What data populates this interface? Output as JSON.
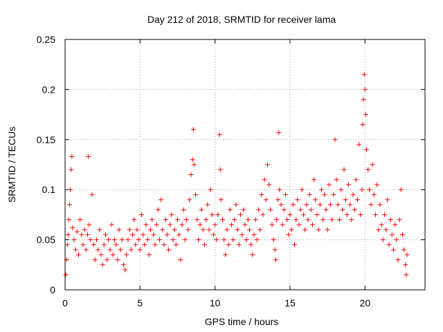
{
  "chart_data": {
    "type": "scatter",
    "title": "Day 212 of 2018, SRMTID for receiver lama",
    "xlabel": "GPS time / hours",
    "ylabel": "SRMTID / TECUs",
    "xlim": [
      0,
      24
    ],
    "ylim": [
      0,
      0.25
    ],
    "xticks": [
      0,
      5,
      10,
      15,
      20
    ],
    "xtick_labels": [
      "0",
      "5",
      "10",
      "15",
      "20"
    ],
    "yticks": [
      0,
      0.05,
      0.1,
      0.15,
      0.2,
      0.25
    ],
    "ytick_labels": [
      "0",
      "0.05",
      "0.1",
      "0.15",
      "0.2",
      "0.25"
    ],
    "grid": true,
    "marker": "+",
    "color": "#ff0000",
    "series": [
      {
        "name": "SRMTID",
        "points": [
          [
            0.05,
            0.015
          ],
          [
            0.1,
            0.03
          ],
          [
            0.15,
            0.045
          ],
          [
            0.2,
            0.055
          ],
          [
            0.25,
            0.07
          ],
          [
            0.3,
            0.085
          ],
          [
            0.35,
            0.1
          ],
          [
            0.4,
            0.12
          ],
          [
            0.45,
            0.133
          ],
          [
            0.5,
            0.062
          ],
          [
            0.6,
            0.05
          ],
          [
            0.7,
            0.04
          ],
          [
            0.8,
            0.058
          ],
          [
            0.9,
            0.035
          ],
          [
            1.0,
            0.07
          ],
          [
            1.1,
            0.055
          ],
          [
            1.2,
            0.045
          ],
          [
            1.3,
            0.06
          ],
          [
            1.4,
            0.04
          ],
          [
            1.5,
            0.055
          ],
          [
            1.55,
            0.133
          ],
          [
            1.6,
            0.065
          ],
          [
            1.7,
            0.05
          ],
          [
            1.8,
            0.095
          ],
          [
            1.9,
            0.045
          ],
          [
            2.0,
            0.03
          ],
          [
            2.1,
            0.05
          ],
          [
            2.2,
            0.04
          ],
          [
            2.3,
            0.06
          ],
          [
            2.4,
            0.035
          ],
          [
            2.5,
            0.025
          ],
          [
            2.6,
            0.045
          ],
          [
            2.7,
            0.055
          ],
          [
            2.8,
            0.03
          ],
          [
            2.9,
            0.05
          ],
          [
            3.0,
            0.04
          ],
          [
            3.1,
            0.065
          ],
          [
            3.2,
            0.035
          ],
          [
            3.3,
            0.05
          ],
          [
            3.4,
            0.045
          ],
          [
            3.5,
            0.03
          ],
          [
            3.6,
            0.06
          ],
          [
            3.7,
            0.04
          ],
          [
            3.8,
            0.05
          ],
          [
            3.9,
            0.025
          ],
          [
            4.0,
            0.02
          ],
          [
            4.1,
            0.035
          ],
          [
            4.2,
            0.05
          ],
          [
            4.3,
            0.06
          ],
          [
            4.4,
            0.04
          ],
          [
            4.5,
            0.055
          ],
          [
            4.6,
            0.07
          ],
          [
            4.7,
            0.045
          ],
          [
            4.8,
            0.06
          ],
          [
            4.9,
            0.05
          ],
          [
            5.0,
            0.04
          ],
          [
            5.1,
            0.075
          ],
          [
            5.2,
            0.055
          ],
          [
            5.3,
            0.045
          ],
          [
            5.4,
            0.065
          ],
          [
            5.5,
            0.05
          ],
          [
            5.6,
            0.035
          ],
          [
            5.7,
            0.06
          ],
          [
            5.8,
            0.07
          ],
          [
            5.9,
            0.055
          ],
          [
            6.0,
            0.045
          ],
          [
            6.1,
            0.065
          ],
          [
            6.2,
            0.08
          ],
          [
            6.3,
            0.05
          ],
          [
            6.4,
            0.09
          ],
          [
            6.5,
            0.06
          ],
          [
            6.6,
            0.045
          ],
          [
            6.7,
            0.07
          ],
          [
            6.8,
            0.055
          ],
          [
            6.9,
            0.04
          ],
          [
            7.0,
            0.065
          ],
          [
            7.1,
            0.075
          ],
          [
            7.2,
            0.05
          ],
          [
            7.3,
            0.06
          ],
          [
            7.4,
            0.045
          ],
          [
            7.5,
            0.07
          ],
          [
            7.6,
            0.055
          ],
          [
            7.7,
            0.03
          ],
          [
            7.8,
            0.065
          ],
          [
            7.9,
            0.08
          ],
          [
            8.0,
            0.05
          ],
          [
            8.1,
            0.07
          ],
          [
            8.2,
            0.06
          ],
          [
            8.3,
            0.09
          ],
          [
            8.4,
            0.115
          ],
          [
            8.5,
            0.13
          ],
          [
            8.55,
            0.16
          ],
          [
            8.6,
            0.125
          ],
          [
            8.7,
            0.095
          ],
          [
            8.8,
            0.07
          ],
          [
            8.9,
            0.05
          ],
          [
            9.0,
            0.065
          ],
          [
            9.1,
            0.08
          ],
          [
            9.2,
            0.06
          ],
          [
            9.3,
            0.045
          ],
          [
            9.4,
            0.07
          ],
          [
            9.5,
            0.085
          ],
          [
            9.6,
            0.06
          ],
          [
            9.7,
            0.1
          ],
          [
            9.8,
            0.075
          ],
          [
            9.9,
            0.055
          ],
          [
            10.0,
            0.065
          ],
          [
            10.1,
            0.05
          ],
          [
            10.2,
            0.075
          ],
          [
            10.3,
            0.155
          ],
          [
            10.35,
            0.12
          ],
          [
            10.4,
            0.09
          ],
          [
            10.5,
            0.07
          ],
          [
            10.6,
            0.05
          ],
          [
            10.7,
            0.035
          ],
          [
            10.8,
            0.06
          ],
          [
            10.9,
            0.045
          ],
          [
            11.0,
            0.08
          ],
          [
            11.1,
            0.065
          ],
          [
            11.2,
            0.05
          ],
          [
            11.3,
            0.07
          ],
          [
            11.4,
            0.085
          ],
          [
            11.5,
            0.06
          ],
          [
            11.6,
            0.045
          ],
          [
            11.7,
            0.075
          ],
          [
            11.8,
            0.055
          ],
          [
            11.9,
            0.08
          ],
          [
            12.0,
            0.065
          ],
          [
            12.1,
            0.05
          ],
          [
            12.2,
            0.07
          ],
          [
            12.3,
            0.06
          ],
          [
            12.4,
            0.045
          ],
          [
            12.5,
            0.035
          ],
          [
            12.6,
            0.055
          ],
          [
            12.7,
            0.07
          ],
          [
            12.8,
            0.05
          ],
          [
            12.9,
            0.08
          ],
          [
            13.0,
            0.06
          ],
          [
            13.1,
            0.095
          ],
          [
            13.2,
            0.075
          ],
          [
            13.3,
            0.11
          ],
          [
            13.4,
            0.09
          ],
          [
            13.5,
            0.125
          ],
          [
            13.6,
            0.105
          ],
          [
            13.7,
            0.08
          ],
          [
            13.8,
            0.065
          ],
          [
            13.9,
            0.05
          ],
          [
            14.0,
            0.04
          ],
          [
            14.05,
            0.03
          ],
          [
            14.1,
            0.07
          ],
          [
            14.2,
            0.09
          ],
          [
            14.25,
            0.157
          ],
          [
            14.3,
            0.1
          ],
          [
            14.4,
            0.085
          ],
          [
            14.5,
            0.065
          ],
          [
            14.6,
            0.08
          ],
          [
            14.7,
            0.095
          ],
          [
            14.8,
            0.07
          ],
          [
            14.9,
            0.055
          ],
          [
            15.0,
            0.075
          ],
          [
            15.1,
            0.06
          ],
          [
            15.2,
            0.085
          ],
          [
            15.3,
            0.045
          ],
          [
            15.4,
            0.07
          ],
          [
            15.5,
            0.09
          ],
          [
            15.6,
            0.065
          ],
          [
            15.7,
            0.08
          ],
          [
            15.8,
            0.1
          ],
          [
            15.9,
            0.075
          ],
          [
            16.0,
            0.06
          ],
          [
            16.1,
            0.085
          ],
          [
            16.2,
            0.07
          ],
          [
            16.3,
            0.095
          ],
          [
            16.4,
            0.08
          ],
          [
            16.5,
            0.065
          ],
          [
            16.6,
            0.11
          ],
          [
            16.7,
            0.09
          ],
          [
            16.8,
            0.075
          ],
          [
            16.9,
            0.06
          ],
          [
            17.0,
            0.085
          ],
          [
            17.1,
            0.1
          ],
          [
            17.2,
            0.07
          ],
          [
            17.3,
            0.095
          ],
          [
            17.4,
            0.08
          ],
          [
            17.5,
            0.06
          ],
          [
            17.6,
            0.105
          ],
          [
            17.7,
            0.085
          ],
          [
            17.8,
            0.07
          ],
          [
            17.9,
            0.095
          ],
          [
            18.0,
            0.15
          ],
          [
            18.1,
            0.11
          ],
          [
            18.2,
            0.085
          ],
          [
            18.3,
            0.07
          ],
          [
            18.4,
            0.1
          ],
          [
            18.5,
            0.08
          ],
          [
            18.6,
            0.12
          ],
          [
            18.7,
            0.09
          ],
          [
            18.8,
            0.075
          ],
          [
            18.9,
            0.105
          ],
          [
            19.0,
            0.085
          ],
          [
            19.1,
            0.07
          ],
          [
            19.2,
            0.095
          ],
          [
            19.3,
            0.08
          ],
          [
            19.4,
            0.11
          ],
          [
            19.5,
            0.09
          ],
          [
            19.6,
            0.145
          ],
          [
            19.7,
            0.075
          ],
          [
            19.8,
            0.1
          ],
          [
            19.85,
            0.165
          ],
          [
            19.9,
            0.19
          ],
          [
            19.95,
            0.215
          ],
          [
            20.0,
            0.2
          ],
          [
            20.05,
            0.175
          ],
          [
            20.1,
            0.14
          ],
          [
            20.2,
            0.12
          ],
          [
            20.3,
            0.1
          ],
          [
            20.4,
            0.085
          ],
          [
            20.5,
            0.125
          ],
          [
            20.6,
            0.095
          ],
          [
            20.7,
            0.075
          ],
          [
            20.8,
            0.105
          ],
          [
            20.9,
            0.06
          ],
          [
            21.0,
            0.085
          ],
          [
            21.1,
            0.065
          ],
          [
            21.2,
            0.05
          ],
          [
            21.3,
            0.075
          ],
          [
            21.4,
            0.06
          ],
          [
            21.5,
            0.09
          ],
          [
            21.6,
            0.045
          ],
          [
            21.7,
            0.07
          ],
          [
            21.8,
            0.055
          ],
          [
            21.9,
            0.04
          ],
          [
            22.0,
            0.065
          ],
          [
            22.1,
            0.05
          ],
          [
            22.2,
            0.03
          ],
          [
            22.3,
            0.07
          ],
          [
            22.4,
            0.1
          ],
          [
            22.5,
            0.055
          ],
          [
            22.6,
            0.04
          ],
          [
            22.7,
            0.025
          ],
          [
            22.75,
            0.015
          ],
          [
            22.8,
            0.035
          ]
        ]
      }
    ]
  }
}
